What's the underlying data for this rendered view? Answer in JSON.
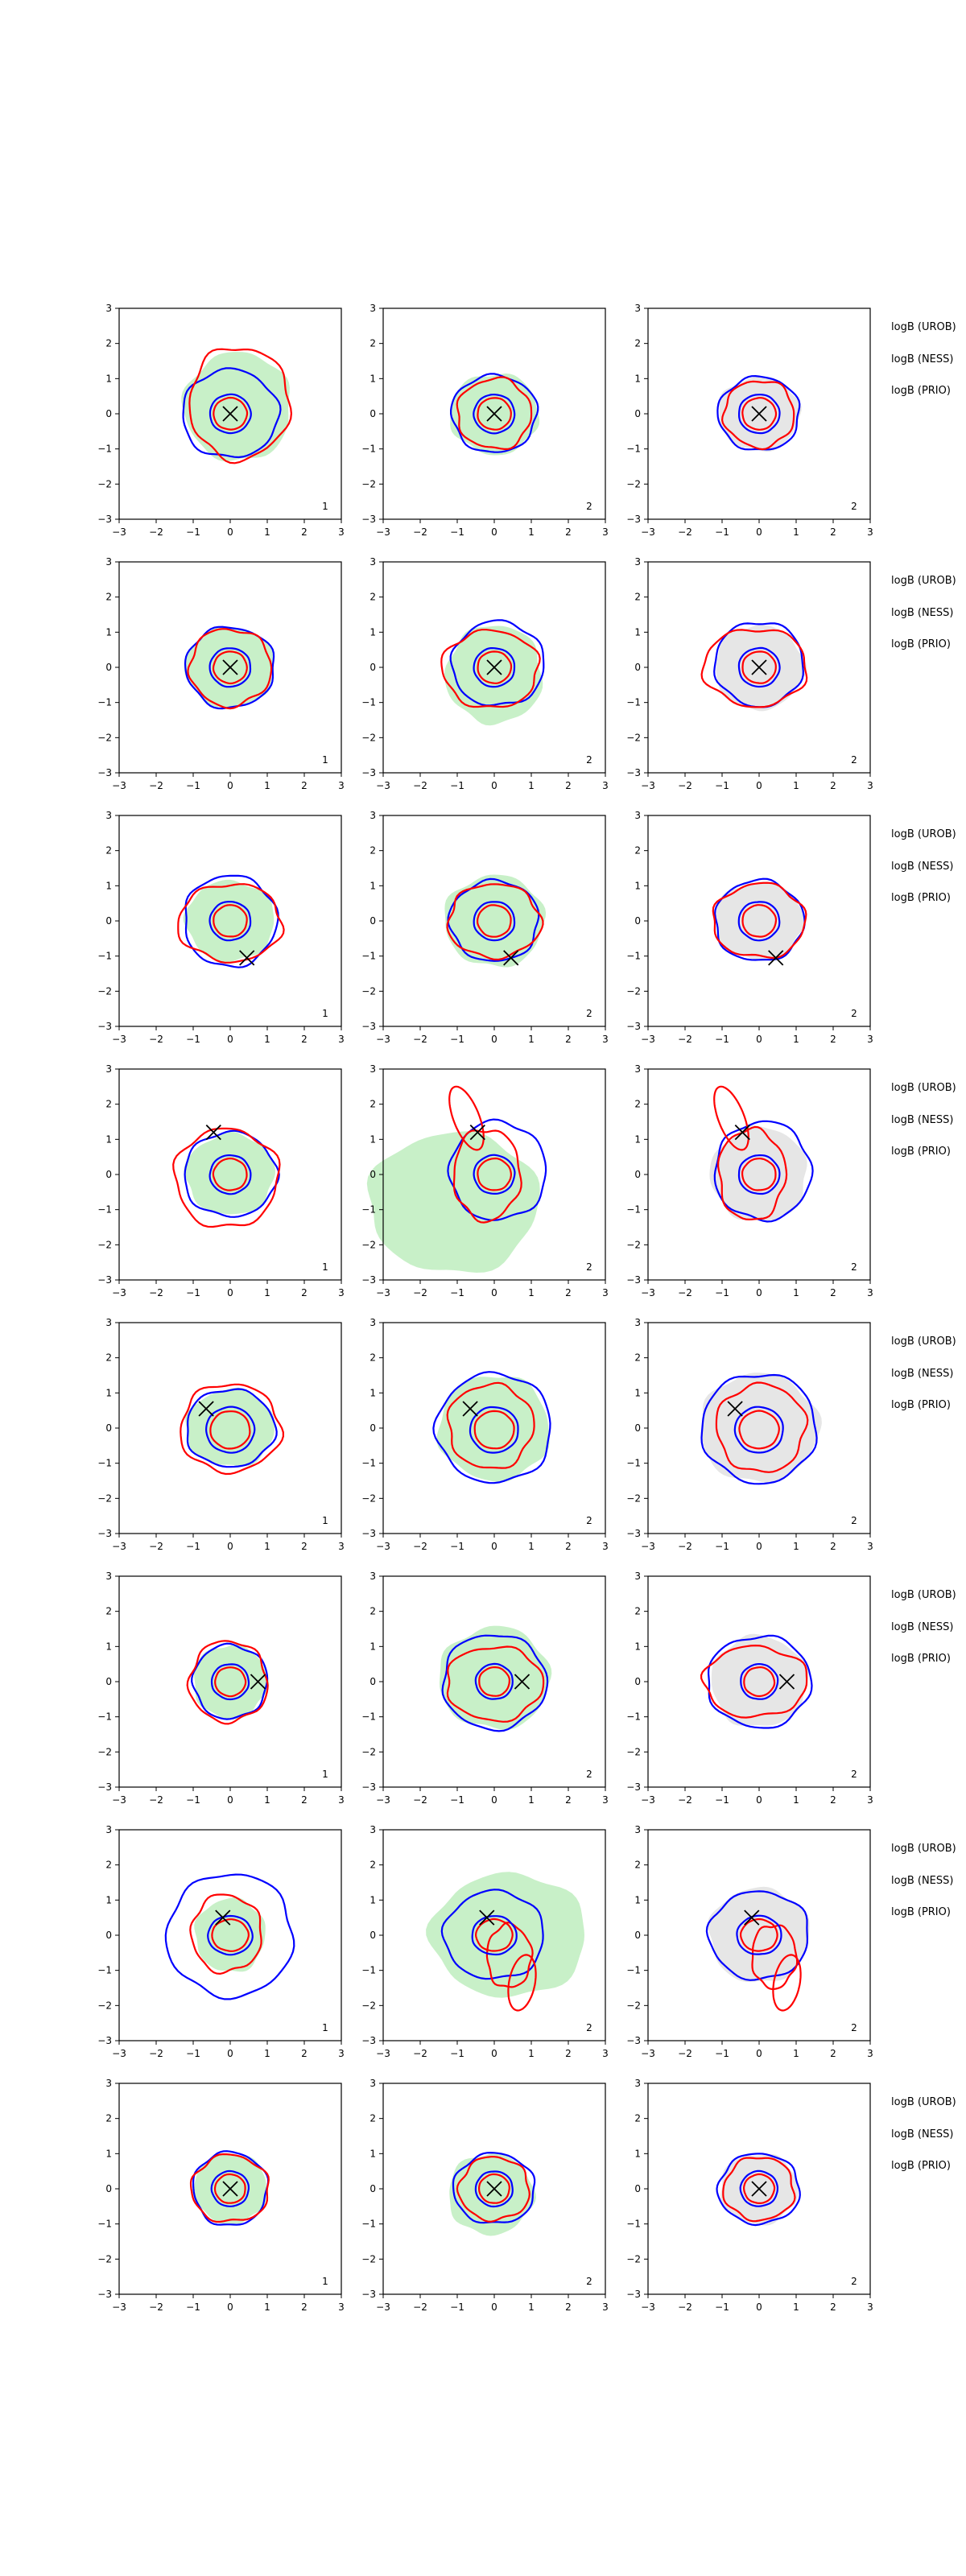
{
  "figure": {
    "axis_ticks": [
      "−3",
      "−2",
      "−1",
      "0",
      "1",
      "2",
      "3"
    ],
    "legend_labels": [
      "logB (UROB)",
      "logB (NESS)",
      "logB (PRIO)"
    ],
    "colors": {
      "blue": "#0000ff",
      "red": "#ff0000",
      "fill_green": "#c8f0c8",
      "fill_grey": "#e6e6e6",
      "marker": "#000000"
    }
  },
  "chart_data": {
    "type": "contour",
    "grid": {
      "rows": 8,
      "cols": 3
    },
    "xlim": [
      -3,
      3
    ],
    "ylim": [
      -3,
      3
    ],
    "panel_corner_labels": [
      [
        "1",
        "2",
        "2"
      ],
      [
        "1",
        "2",
        "2"
      ],
      [
        "1",
        "2",
        "2"
      ],
      [
        "1",
        "2",
        "2"
      ],
      [
        "1",
        "2",
        "2"
      ],
      [
        "1",
        "2",
        "2"
      ],
      [
        "1",
        "2",
        "2"
      ],
      [
        "1",
        "2",
        "2"
      ]
    ],
    "panel_fill": [
      "green",
      "green",
      "grey"
    ],
    "rows": [
      {
        "marker": [
          0,
          0
        ],
        "blue_outer": {
          "cx": 0.0,
          "cy": 0.0,
          "rx": 1.3,
          "ry": 1.25
        },
        "red_outer": {
          "cx": 0.25,
          "cy": 0.3,
          "rx": 1.35,
          "ry": 1.6
        },
        "inner": {
          "cx": 0.0,
          "cy": 0.0,
          "rx": 0.55,
          "ry": 0.55
        },
        "cells": [
          {
            "fill": {
              "cx": 0.2,
              "cy": 0.2,
              "rx": 1.45,
              "ry": 1.55
            }
          },
          {
            "fill": {
              "cx": 0.0,
              "cy": 0.0,
              "rx": 1.2,
              "ry": 1.15
            },
            "blue": {
              "cx": 0.0,
              "cy": 0.0,
              "rx": 1.15,
              "ry": 1.1
            },
            "red": {
              "cx": 0.0,
              "cy": 0.0,
              "rx": 1.0,
              "ry": 1.0
            }
          },
          {
            "fill": {
              "cx": 0.0,
              "cy": 0.0,
              "rx": 1.1,
              "ry": 1.05
            },
            "blue": {
              "cx": 0.0,
              "cy": 0.0,
              "rx": 1.1,
              "ry": 1.05
            },
            "red": {
              "cx": 0.0,
              "cy": 0.0,
              "rx": 0.95,
              "ry": 0.95
            }
          }
        ]
      },
      {
        "marker": [
          0,
          0
        ],
        "blue_outer": {
          "cx": 0.0,
          "cy": 0.0,
          "rx": 1.2,
          "ry": 1.15
        },
        "red_outer": {
          "cx": 0.0,
          "cy": 0.0,
          "rx": 1.1,
          "ry": 1.1
        },
        "inner": {
          "cx": 0.0,
          "cy": 0.0,
          "rx": 0.55,
          "ry": 0.55
        },
        "cells": [
          {
            "fill": {
              "cx": 0.0,
              "cy": 0.0,
              "rx": 1.2,
              "ry": 1.15
            }
          },
          {
            "fill": {
              "cx": 0.0,
              "cy": -0.2,
              "rx": 1.3,
              "ry": 1.4
            },
            "blue": {
              "cx": 0.1,
              "cy": 0.1,
              "rx": 1.25,
              "ry": 1.2
            },
            "red": {
              "cx": -0.1,
              "cy": -0.05,
              "rx": 1.3,
              "ry": 1.1
            }
          },
          {
            "fill": {
              "cx": 0.0,
              "cy": 0.0,
              "rx": 1.2,
              "ry": 1.2
            },
            "blue": {
              "cx": 0.0,
              "cy": 0.1,
              "rx": 1.2,
              "ry": 1.2
            },
            "red": {
              "cx": -0.1,
              "cy": 0.0,
              "rx": 1.4,
              "ry": 1.1
            }
          }
        ]
      },
      {
        "marker": [
          0.45,
          -1.05
        ],
        "blue_outer": {
          "cx": 0.0,
          "cy": 0.0,
          "rx": 1.25,
          "ry": 1.3
        },
        "red_outer": {
          "cx": 0.0,
          "cy": -0.05,
          "rx": 1.4,
          "ry": 1.1
        },
        "inner": {
          "cx": 0.0,
          "cy": 0.0,
          "rx": 0.55,
          "ry": 0.55
        },
        "cells": [
          {
            "fill": {
              "cx": 0.0,
              "cy": 0.0,
              "rx": 1.2,
              "ry": 1.15
            }
          },
          {
            "fill": {
              "cx": 0.0,
              "cy": 0.0,
              "rx": 1.35,
              "ry": 1.3
            },
            "blue": {
              "cx": 0.0,
              "cy": 0.0,
              "rx": 1.2,
              "ry": 1.15
            },
            "red": {
              "cx": 0.0,
              "cy": 0.0,
              "rx": 1.25,
              "ry": 1.05
            }
          },
          {
            "fill": {
              "cx": 0.0,
              "cy": 0.0,
              "rx": 1.2,
              "ry": 1.1
            },
            "blue": {
              "cx": 0.0,
              "cy": 0.0,
              "rx": 1.2,
              "ry": 1.15
            },
            "red": {
              "cx": 0.0,
              "cy": 0.0,
              "rx": 1.25,
              "ry": 1.05
            }
          }
        ]
      },
      {
        "marker": [
          -0.45,
          1.2
        ],
        "blue_outer": {
          "cx": 0.0,
          "cy": 0.0,
          "rx": 1.25,
          "ry": 1.2
        },
        "red_outer": {
          "cx": -0.1,
          "cy": -0.1,
          "rx": 1.4,
          "ry": 1.4
        },
        "inner": {
          "cx": 0.0,
          "cy": 0.0,
          "rx": 0.55,
          "ry": 0.55
        },
        "cells": [
          {
            "fill": {
              "cx": 0.0,
              "cy": 0.0,
              "rx": 1.2,
              "ry": 1.15
            }
          },
          {
            "fill": {
              "cx": -1.1,
              "cy": -0.8,
              "rx": 2.3,
              "ry": 2.0
            },
            "blue": {
              "cx": 0.1,
              "cy": 0.1,
              "rx": 1.3,
              "ry": 1.4
            },
            "red": {
              "cx": -0.2,
              "cy": 0.0,
              "rx": 0.9,
              "ry": 1.3
            },
            "red_lobe": {
              "cx": -0.75,
              "cy": 1.6,
              "rx": 0.35,
              "ry": 0.95,
              "rot": 20
            }
          },
          {
            "fill": {
              "cx": 0.0,
              "cy": 0.0,
              "rx": 1.3,
              "ry": 1.35
            },
            "blue": {
              "cx": 0.1,
              "cy": 0.1,
              "rx": 1.3,
              "ry": 1.4
            },
            "red": {
              "cx": -0.2,
              "cy": 0.0,
              "rx": 0.9,
              "ry": 1.3
            },
            "red_lobe": {
              "cx": -0.75,
              "cy": 1.6,
              "rx": 0.35,
              "ry": 0.95,
              "rot": 20
            }
          }
        ]
      },
      {
        "marker": [
          -0.65,
          0.55
        ],
        "blue_outer": {
          "cx": 0.0,
          "cy": 0.0,
          "rx": 1.2,
          "ry": 1.1
        },
        "red_outer": {
          "cx": 0.0,
          "cy": 0.0,
          "rx": 1.35,
          "ry": 1.25
        },
        "inner": {
          "cx": 0.0,
          "cy": -0.05,
          "rx": 0.65,
          "ry": 0.65
        },
        "cells": [
          {
            "fill": {
              "cx": 0.0,
              "cy": 0.0,
              "rx": 1.2,
              "ry": 1.1
            }
          },
          {
            "fill": {
              "cx": 0.0,
              "cy": 0.0,
              "rx": 1.5,
              "ry": 1.5
            },
            "blue": {
              "cx": 0.0,
              "cy": 0.0,
              "rx": 1.55,
              "ry": 1.55
            },
            "red": {
              "cx": -0.1,
              "cy": 0.05,
              "rx": 1.15,
              "ry": 1.2
            }
          },
          {
            "fill": {
              "cx": 0.0,
              "cy": 0.0,
              "rx": 1.6,
              "ry": 1.55
            },
            "blue": {
              "cx": 0.0,
              "cy": 0.0,
              "rx": 1.55,
              "ry": 1.55
            },
            "red": {
              "cx": 0.05,
              "cy": 0.0,
              "rx": 1.2,
              "ry": 1.25
            }
          }
        ]
      },
      {
        "marker": [
          0.75,
          0.0
        ],
        "blue_outer": {
          "cx": 0.0,
          "cy": 0.0,
          "rx": 1.0,
          "ry": 1.05
        },
        "red_outer": {
          "cx": -0.05,
          "cy": 0.0,
          "rx": 1.05,
          "ry": 1.15
        },
        "inner": {
          "cx": 0.0,
          "cy": 0.0,
          "rx": 0.5,
          "ry": 0.5
        },
        "cells": [
          {
            "fill": {
              "cx": 0.0,
              "cy": 0.0,
              "rx": 1.0,
              "ry": 1.05
            }
          },
          {
            "fill": {
              "cx": 0.0,
              "cy": 0.1,
              "rx": 1.5,
              "ry": 1.45
            },
            "blue": {
              "cx": 0.0,
              "cy": 0.0,
              "rx": 1.4,
              "ry": 1.35
            },
            "red": {
              "cx": 0.0,
              "cy": -0.05,
              "rx": 1.3,
              "ry": 1.05
            }
          },
          {
            "fill": {
              "cx": 0.0,
              "cy": 0.0,
              "rx": 1.3,
              "ry": 1.3
            },
            "blue": {
              "cx": 0.0,
              "cy": 0.0,
              "rx": 1.4,
              "ry": 1.3
            },
            "red": {
              "cx": -0.1,
              "cy": 0.0,
              "rx": 1.4,
              "ry": 1.0
            }
          }
        ]
      },
      {
        "marker": [
          -0.2,
          0.5
        ],
        "blue_outer": {
          "cx": 0.0,
          "cy": 0.0,
          "rx": 1.7,
          "ry": 1.75
        },
        "red_outer": {
          "cx": -0.1,
          "cy": 0.05,
          "rx": 0.95,
          "ry": 1.1
        },
        "inner": {
          "cx": 0.0,
          "cy": 0.0,
          "rx": 0.6,
          "ry": 0.55
        },
        "cells": [
          {
            "fill": {
              "cx": 0.0,
              "cy": 0.0,
              "rx": 0.95,
              "ry": 1.05
            }
          },
          {
            "fill": {
              "cx": 0.4,
              "cy": 0.0,
              "rx": 2.1,
              "ry": 1.75
            },
            "blue": {
              "cx": 0.0,
              "cy": 0.0,
              "rx": 1.35,
              "ry": 1.25
            },
            "red": {
              "cx": 0.4,
              "cy": -0.6,
              "rx": 0.6,
              "ry": 0.9
            },
            "red_lobe": {
              "cx": 0.75,
              "cy": -1.35,
              "rx": 0.35,
              "ry": 0.8,
              "rot": -10
            }
          },
          {
            "fill": {
              "cx": 0.0,
              "cy": 0.0,
              "rx": 1.35,
              "ry": 1.35
            },
            "blue": {
              "cx": 0.0,
              "cy": 0.0,
              "rx": 1.35,
              "ry": 1.25
            },
            "red": {
              "cx": 0.4,
              "cy": -0.6,
              "rx": 0.6,
              "ry": 0.9
            },
            "red_lobe": {
              "cx": 0.75,
              "cy": -1.35,
              "rx": 0.35,
              "ry": 0.8,
              "rot": -10
            }
          }
        ]
      },
      {
        "marker": [
          0,
          0
        ],
        "blue_outer": {
          "cx": 0.0,
          "cy": 0.0,
          "rx": 1.0,
          "ry": 1.05
        },
        "red_outer": {
          "cx": 0.0,
          "cy": 0.0,
          "rx": 1.05,
          "ry": 0.95
        },
        "inner": {
          "cx": 0.0,
          "cy": 0.0,
          "rx": 0.5,
          "ry": 0.5
        },
        "cells": [
          {
            "fill": {
              "cx": 0.0,
              "cy": 0.0,
              "rx": 1.0,
              "ry": 1.0
            }
          },
          {
            "fill": {
              "cx": -0.1,
              "cy": -0.15,
              "rx": 1.15,
              "ry": 1.15
            },
            "blue": {
              "cx": 0.0,
              "cy": 0.0,
              "rx": 1.1,
              "ry": 1.0
            },
            "red": {
              "cx": 0.0,
              "cy": 0.0,
              "rx": 0.95,
              "ry": 0.9
            }
          },
          {
            "fill": {
              "cx": 0.0,
              "cy": 0.0,
              "rx": 1.05,
              "ry": 1.0
            },
            "blue": {
              "cx": 0.0,
              "cy": 0.0,
              "rx": 1.1,
              "ry": 1.0
            },
            "red": {
              "cx": 0.0,
              "cy": 0.0,
              "rx": 0.95,
              "ry": 0.9
            }
          }
        ]
      }
    ]
  }
}
